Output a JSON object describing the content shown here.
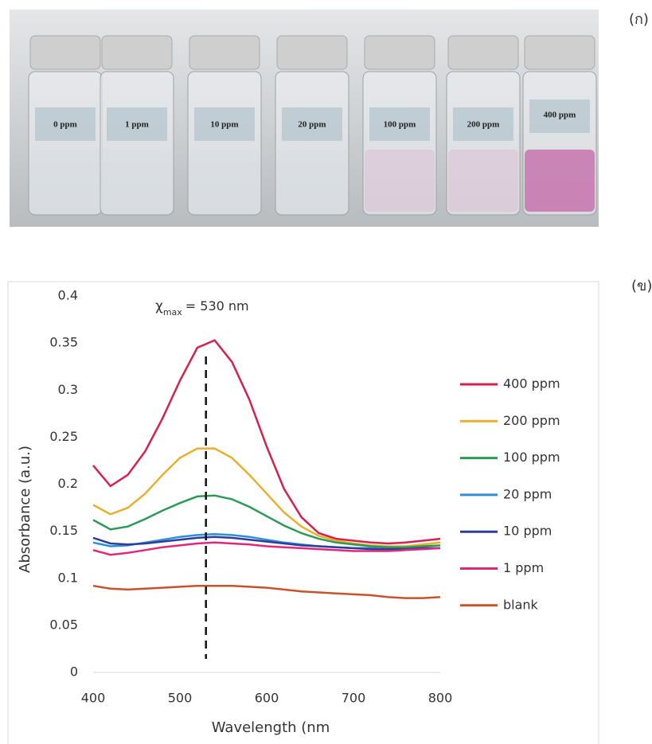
{
  "panel_labels": [
    "(ก)",
    "(ข)"
  ],
  "photo": {
    "vial_labels": [
      "0 ppm",
      "1 ppm",
      "10 ppm",
      "20 ppm",
      "100 ppm",
      "200 ppm",
      "400 ppm"
    ]
  },
  "chart_data": {
    "type": "line",
    "x_label": "Wavelength (nm",
    "y_label": "Absorbance (a.u.)",
    "annotation": {
      "symbol": "χ",
      "subscript": "max",
      "text": "= 530 nm",
      "x": 530
    },
    "x": [
      400,
      420,
      440,
      460,
      480,
      500,
      520,
      540,
      560,
      580,
      600,
      620,
      640,
      660,
      680,
      700,
      720,
      740,
      760,
      780,
      800
    ],
    "xlim": [
      400,
      800
    ],
    "xticks": [
      400,
      500,
      600,
      700,
      800
    ],
    "ylim": [
      0,
      0.4
    ],
    "yticks": [
      0,
      0.05,
      0.1,
      0.15,
      0.2,
      0.25,
      0.3,
      0.35,
      0.4
    ],
    "legend": "right",
    "series": [
      {
        "name": "400 ppm",
        "color": "#d6214e",
        "values": [
          0.22,
          0.198,
          0.21,
          0.235,
          0.27,
          0.31,
          0.345,
          0.353,
          0.33,
          0.29,
          0.24,
          0.195,
          0.165,
          0.148,
          0.142,
          0.14,
          0.138,
          0.137,
          0.138,
          0.14,
          0.142
        ]
      },
      {
        "name": "200 ppm",
        "color": "#e6b12c",
        "values": [
          0.178,
          0.168,
          0.175,
          0.19,
          0.21,
          0.228,
          0.238,
          0.238,
          0.228,
          0.21,
          0.19,
          0.17,
          0.155,
          0.145,
          0.14,
          0.137,
          0.135,
          0.134,
          0.134,
          0.136,
          0.138
        ]
      },
      {
        "name": "100 ppm",
        "color": "#2c9a55",
        "values": [
          0.162,
          0.152,
          0.155,
          0.163,
          0.172,
          0.18,
          0.187,
          0.188,
          0.184,
          0.176,
          0.166,
          0.156,
          0.148,
          0.142,
          0.138,
          0.136,
          0.134,
          0.133,
          0.133,
          0.134,
          0.135
        ]
      },
      {
        "name": "20 ppm",
        "color": "#2f8fd6",
        "values": [
          0.138,
          0.134,
          0.135,
          0.138,
          0.141,
          0.144,
          0.146,
          0.147,
          0.146,
          0.144,
          0.141,
          0.138,
          0.136,
          0.134,
          0.133,
          0.132,
          0.132,
          0.131,
          0.131,
          0.132,
          0.132
        ]
      },
      {
        "name": "10 ppm",
        "color": "#2e3d99",
        "values": [
          0.143,
          0.137,
          0.136,
          0.137,
          0.139,
          0.141,
          0.143,
          0.144,
          0.143,
          0.141,
          0.139,
          0.137,
          0.135,
          0.134,
          0.133,
          0.132,
          0.131,
          0.131,
          0.131,
          0.132,
          0.132
        ]
      },
      {
        "name": "1 ppm",
        "color": "#e0287a",
        "values": [
          0.13,
          0.125,
          0.127,
          0.13,
          0.133,
          0.135,
          0.137,
          0.138,
          0.137,
          0.136,
          0.134,
          0.133,
          0.132,
          0.131,
          0.13,
          0.129,
          0.129,
          0.129,
          0.13,
          0.131,
          0.132
        ]
      },
      {
        "name": "blank",
        "color": "#c8532a",
        "values": [
          0.092,
          0.089,
          0.088,
          0.089,
          0.09,
          0.091,
          0.092,
          0.092,
          0.092,
          0.091,
          0.09,
          0.088,
          0.086,
          0.085,
          0.084,
          0.083,
          0.082,
          0.08,
          0.079,
          0.079,
          0.08
        ]
      }
    ]
  }
}
